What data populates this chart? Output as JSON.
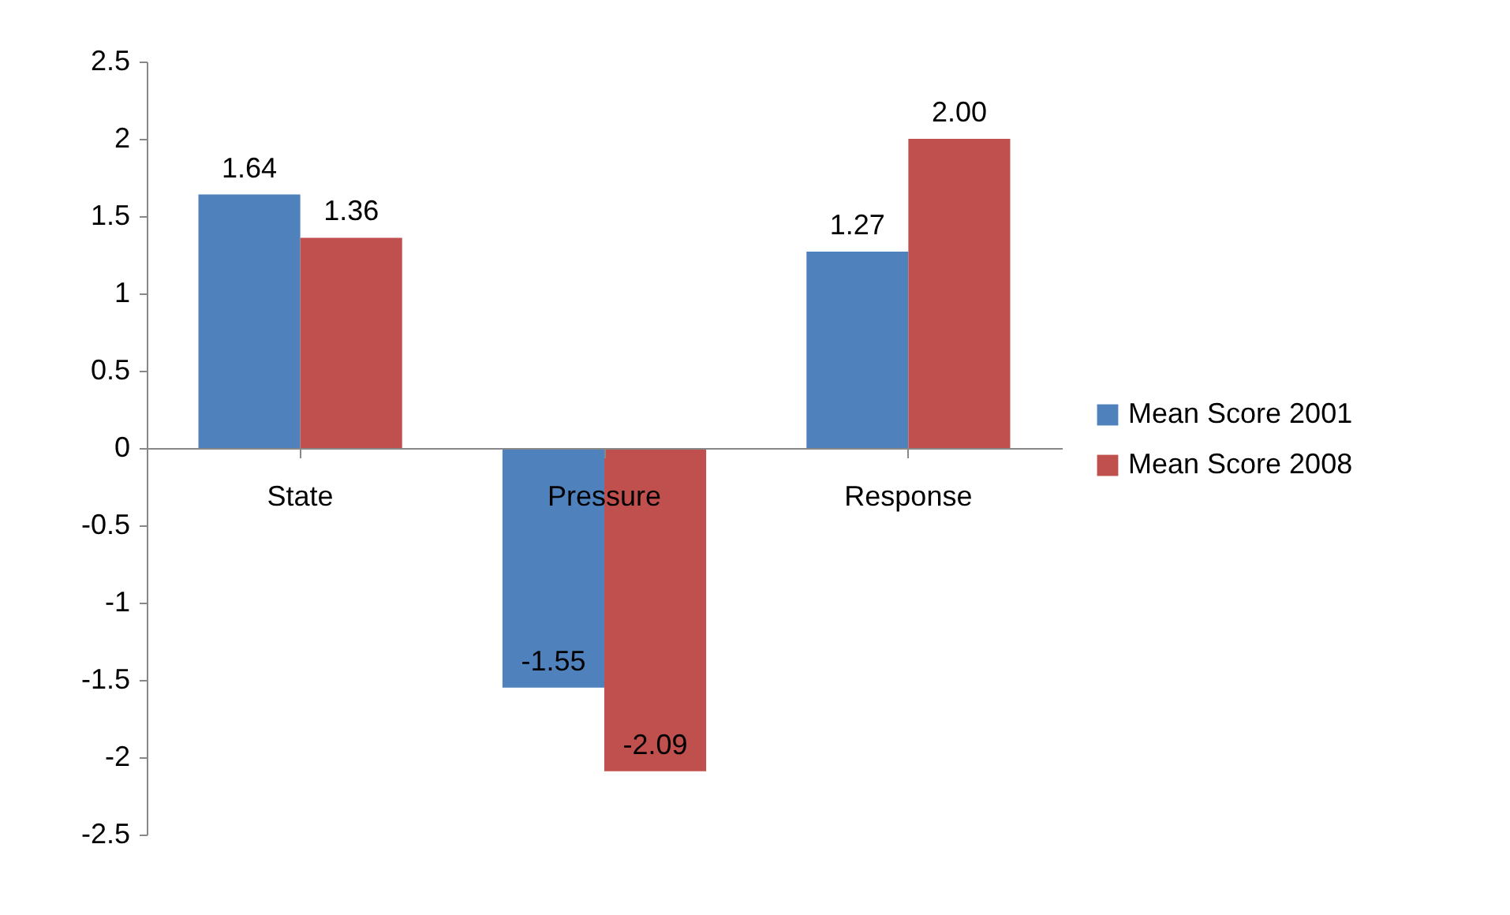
{
  "chart_data": {
    "type": "bar",
    "categories": [
      "State",
      "Pressure",
      "Response"
    ],
    "series": [
      {
        "name": "Mean Score 2001",
        "color": "#4f81bd",
        "values": [
          1.64,
          -1.55,
          1.27
        ],
        "value_labels": [
          "1.64",
          "-1.55",
          "1.27"
        ]
      },
      {
        "name": "Mean Score 2008",
        "color": "#c0504d",
        "values": [
          1.36,
          -2.09,
          2.0
        ],
        "value_labels": [
          "1.36",
          "-2.09",
          "2.00"
        ]
      }
    ],
    "ylim": [
      -2.5,
      2.5
    ],
    "yticks": [
      {
        "value": 2.5,
        "label": "2.5"
      },
      {
        "value": 2,
        "label": "2"
      },
      {
        "value": 1.5,
        "label": "1.5"
      },
      {
        "value": 1,
        "label": "1"
      },
      {
        "value": 0.5,
        "label": "0.5"
      },
      {
        "value": 0,
        "label": "0"
      },
      {
        "value": -0.5,
        "label": "-0.5"
      },
      {
        "value": -1,
        "label": "-1"
      },
      {
        "value": -1.5,
        "label": "-1.5"
      },
      {
        "value": -2,
        "label": "-2"
      },
      {
        "value": -2.5,
        "label": "-2.5"
      }
    ],
    "grid": false,
    "legend": "right"
  }
}
